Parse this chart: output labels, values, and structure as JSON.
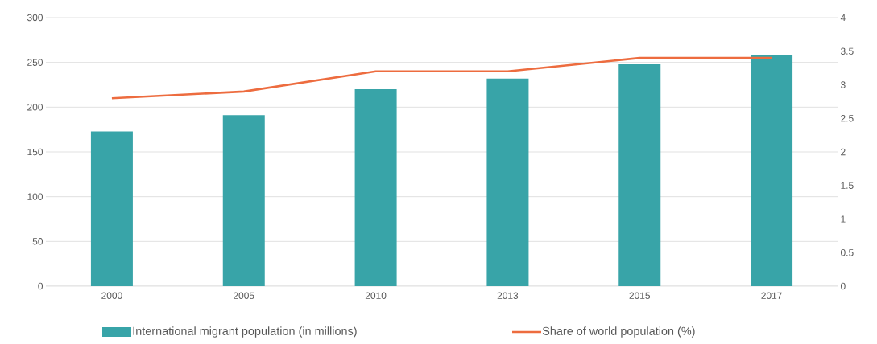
{
  "chart_data": {
    "type": "bar",
    "categories": [
      "2000",
      "2005",
      "2010",
      "2013",
      "2015",
      "2017"
    ],
    "series": [
      {
        "name": "International migrant population (in millions)",
        "color": "#38a4a8",
        "values": [
          173,
          191,
          220,
          232,
          248,
          258
        ]
      },
      {
        "name": "Share of world population (%)",
        "type": "line",
        "axis": "y2",
        "color": "#ed6c3f",
        "values": [
          2.8,
          2.9,
          3.2,
          3.2,
          3.4,
          3.4
        ]
      }
    ],
    "ylim": [
      0,
      300
    ],
    "yticks": [
      0,
      50,
      100,
      150,
      200,
      250,
      300
    ],
    "y2lim": [
      0,
      4
    ],
    "y2ticks": [
      0,
      0.5,
      1,
      1.5,
      2,
      2.5,
      3,
      3.5,
      4
    ],
    "grid": "y",
    "legend": "bottom",
    "marker": "none",
    "line_style": "solid"
  }
}
